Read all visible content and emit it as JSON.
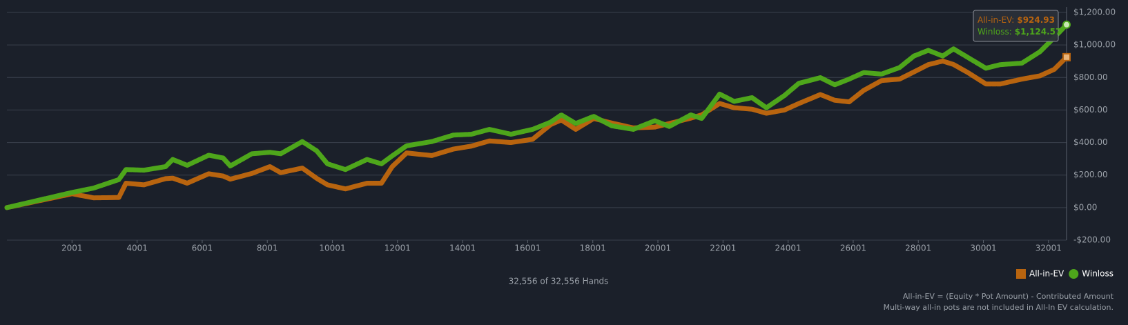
{
  "chart_data": {
    "type": "line",
    "xlim": [
      1,
      32556
    ],
    "xticks": [
      2001,
      4001,
      6001,
      8001,
      10001,
      12001,
      14001,
      16001,
      18001,
      20001,
      22001,
      24001,
      26001,
      28001,
      30001,
      32001
    ],
    "ylim": [
      -200,
      1200
    ],
    "yticks": [
      {
        "value": 1200,
        "label": "$1,200.00"
      },
      {
        "value": 1000,
        "label": "$1,000.00"
      },
      {
        "value": 800,
        "label": "$800.00"
      },
      {
        "value": 600,
        "label": "$600.00"
      },
      {
        "value": 400,
        "label": "$400.00"
      },
      {
        "value": 200,
        "label": "$200.00"
      },
      {
        "value": 0,
        "label": "$0.00"
      },
      {
        "value": -200,
        "label": "-$200.00"
      }
    ],
    "grid": true,
    "legend": "bottom-right",
    "x": [
      1,
      2001,
      2665,
      3439,
      3660,
      4212,
      4876,
      5097,
      5539,
      6202,
      6644,
      6865,
      7528,
      8081,
      8413,
      9076,
      9518,
      9850,
      10402,
      11066,
      11508,
      11839,
      12281,
      13055,
      13718,
      14271,
      14824,
      15487,
      16150,
      16703,
      17034,
      17477,
      18029,
      18582,
      19245,
      19908,
      20350,
      21014,
      21345,
      21898,
      22340,
      22893,
      23335,
      23888,
      24330,
      24993,
      25435,
      25877,
      26319,
      26872,
      27425,
      27867,
      28309,
      28751,
      29083,
      29525,
      30078,
      30520,
      31183,
      31736,
      32178,
      32556
    ],
    "series": [
      {
        "name": "All-in-EV",
        "color": "#b8640f",
        "marker": "square",
        "values": [
          0,
          85,
          60,
          62,
          150,
          140,
          178,
          181,
          150,
          208,
          194,
          175,
          210,
          252,
          215,
          243,
          180,
          140,
          115,
          150,
          150,
          252,
          336,
          320,
          360,
          378,
          410,
          400,
          420,
          510,
          539,
          481,
          548,
          520,
          490,
          495,
          517,
          550,
          570,
          640,
          614,
          605,
          580,
          600,
          640,
          695,
          660,
          650,
          720,
          781,
          790,
          834,
          879,
          901,
          880,
          830,
          760,
          760,
          790,
          810,
          850,
          924.93
        ]
      },
      {
        "name": "Winloss",
        "color": "#4ea61b",
        "marker": "circle",
        "values": [
          0,
          93,
          120,
          172,
          234,
          230,
          252,
          296,
          260,
          322,
          305,
          256,
          331,
          340,
          331,
          406,
          349,
          269,
          234,
          296,
          269,
          318,
          380,
          406,
          446,
          451,
          481,
          451,
          481,
          525,
          570,
          517,
          561,
          503,
          481,
          534,
          499,
          570,
          548,
          698,
          653,
          676,
          614,
          689,
          764,
          799,
          755,
          790,
          830,
          821,
          861,
          932,
          967,
          932,
          976,
          923,
          857,
          879,
          888,
          958,
          1046,
          1124.57
        ]
      }
    ],
    "tooltip": [
      {
        "label": "All-in-EV:",
        "value": "$924.93"
      },
      {
        "label": "Winloss:",
        "value": "$1,124.57"
      }
    ],
    "hands_count": "32,556 of 32,556 Hands",
    "footnotes": [
      "All-in-EV = (Equity * Pot Amount) - Contributed Amount",
      "Multi-way all-in pots are not included in All-In EV calculation."
    ]
  }
}
